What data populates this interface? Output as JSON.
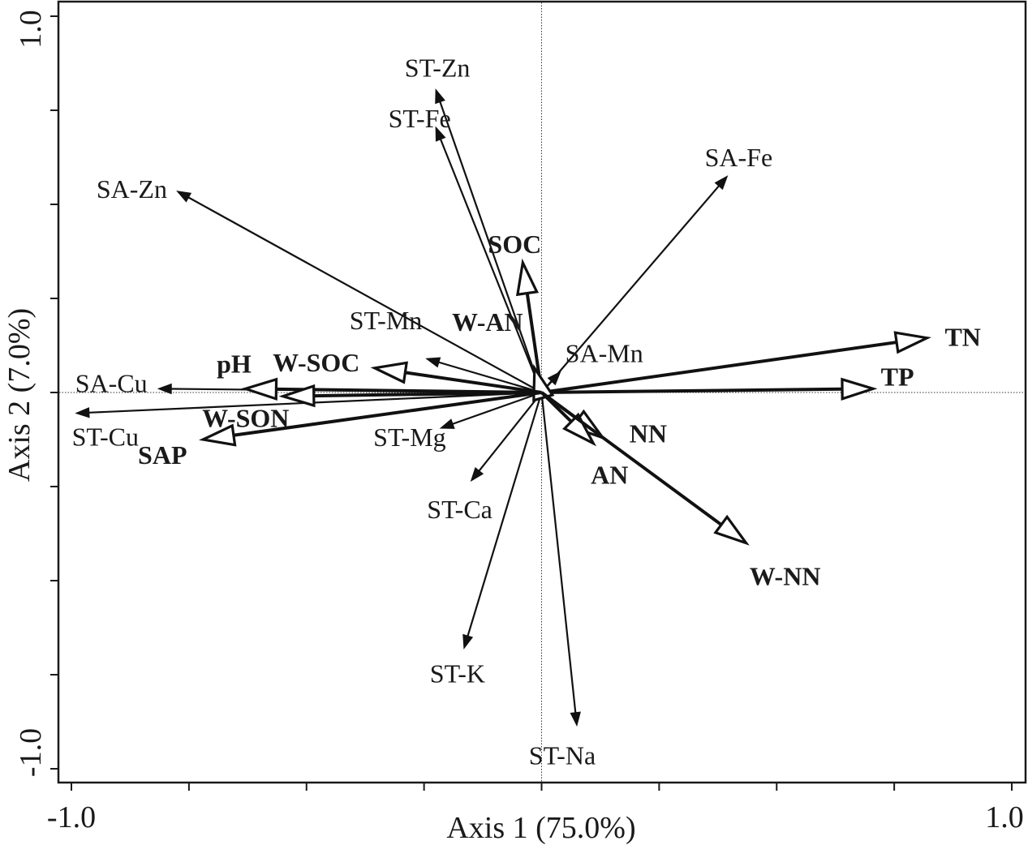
{
  "chart_data": {
    "type": "scatter",
    "subtype": "biplot",
    "xlabel": "Axis 1 (75.0%)",
    "ylabel": "Axis 2 (7.0%)",
    "xlim": [
      -1.0,
      1.0
    ],
    "ylim": [
      -1.0,
      1.0
    ],
    "x_tick_labels": [
      "-1.0",
      "1.0"
    ],
    "y_tick_labels": [
      "-1.0",
      "1.0"
    ],
    "reference_lines": {
      "x0": true,
      "y0": true
    },
    "species_arrows": [
      {
        "name": "ST-Zn",
        "x": -0.225,
        "y": 0.805
      },
      {
        "name": "ST-Fe",
        "x": -0.225,
        "y": 0.705
      },
      {
        "name": "SA-Fe",
        "x": 0.395,
        "y": 0.575
      },
      {
        "name": "SA-Zn",
        "x": -0.775,
        "y": 0.535
      },
      {
        "name": "ST-Mn",
        "x": -0.245,
        "y": 0.09
      },
      {
        "name": "SA-Mn",
        "x": 0.04,
        "y": 0.055
      },
      {
        "name": "SA-Cu",
        "x": -0.815,
        "y": 0.01
      },
      {
        "name": "ST-Cu",
        "x": -0.99,
        "y": -0.055
      },
      {
        "name": "ST-Mg",
        "x": -0.215,
        "y": -0.095
      },
      {
        "name": "ST-Ca",
        "x": -0.15,
        "y": -0.235
      },
      {
        "name": "ST-K",
        "x": -0.165,
        "y": -0.68
      },
      {
        "name": "ST-Na",
        "x": 0.075,
        "y": -0.885
      }
    ],
    "env_arrows": [
      {
        "name": "SOC",
        "x": -0.04,
        "y": 0.345
      },
      {
        "name": "TN",
        "x": 0.82,
        "y": 0.145
      },
      {
        "name": "TP",
        "x": 0.705,
        "y": 0.01
      },
      {
        "name": "W-AN",
        "x": -0.015,
        "y": 0.065
      },
      {
        "name": "W-SOC",
        "x": -0.355,
        "y": 0.065
      },
      {
        "name": "pH",
        "x": -0.63,
        "y": 0.01
      },
      {
        "name": "W-SON",
        "x": -0.55,
        "y": -0.01
      },
      {
        "name": "SAP",
        "x": -0.72,
        "y": -0.125
      },
      {
        "name": "NN",
        "x": 0.13,
        "y": -0.12
      },
      {
        "name": "AN",
        "x": 0.11,
        "y": -0.135
      },
      {
        "name": "W-NN",
        "x": 0.435,
        "y": -0.4
      }
    ]
  }
}
